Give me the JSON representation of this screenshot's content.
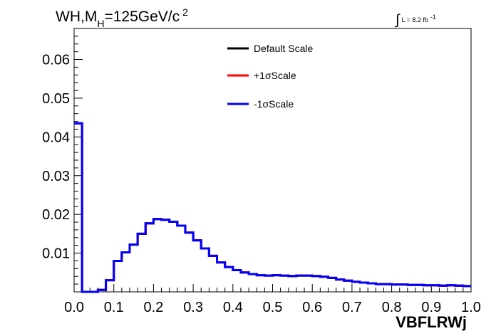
{
  "title": {
    "prefix": "WH,M",
    "subscript": "H",
    "suffix": "=125GeV/c",
    "superscript": "2"
  },
  "lumi": {
    "symbol": "∫",
    "text": "L = 8.2 fb",
    "superscript": "-1"
  },
  "colors": {
    "default": "#000000",
    "plus": "#ff0000",
    "minus": "#0000ff",
    "axis": "#000000"
  },
  "chart_data": {
    "type": "histogram",
    "xlabel": "VBFLRWj",
    "ylabel": "",
    "xlim": [
      0.0,
      1.0
    ],
    "ylim": [
      0.0,
      0.068
    ],
    "x_ticks": [
      "0.0",
      "0.1",
      "0.2",
      "0.3",
      "0.4",
      "0.5",
      "0.6",
      "0.7",
      "0.8",
      "0.9",
      "1.0"
    ],
    "y_ticks": [
      "0.01",
      "0.02",
      "0.03",
      "0.04",
      "0.05",
      "0.06"
    ],
    "y_tick_values": [
      0.01,
      0.02,
      0.03,
      0.04,
      0.05,
      0.06
    ],
    "bin_edges_start": 0.0,
    "bin_width": 0.02,
    "legend_position": "top-center",
    "series": [
      {
        "name": "Default Scale",
        "color": "#000000",
        "values": [
          0.0435,
          0.0,
          0.0,
          0.0005,
          0.003,
          0.008,
          0.0102,
          0.0122,
          0.015,
          0.0177,
          0.0188,
          0.0186,
          0.0181,
          0.0171,
          0.0153,
          0.0133,
          0.0112,
          0.0093,
          0.0076,
          0.0064,
          0.0056,
          0.005,
          0.0046,
          0.0043,
          0.0042,
          0.0043,
          0.0042,
          0.0041,
          0.0042,
          0.0042,
          0.0041,
          0.0039,
          0.0036,
          0.0032,
          0.0029,
          0.0026,
          0.0024,
          0.0022,
          0.002,
          0.002,
          0.0019,
          0.0019,
          0.0018,
          0.0018,
          0.0017,
          0.0017,
          0.0016,
          0.0017,
          0.0016,
          0.0015
        ]
      },
      {
        "name": "+1σScale",
        "color": "#ff0000",
        "values": [
          0.0435,
          0.0,
          0.0,
          0.0005,
          0.003,
          0.008,
          0.0102,
          0.0122,
          0.015,
          0.0177,
          0.0188,
          0.0186,
          0.0181,
          0.0171,
          0.0153,
          0.0133,
          0.0112,
          0.0093,
          0.0076,
          0.0064,
          0.0056,
          0.005,
          0.0046,
          0.0043,
          0.0042,
          0.0043,
          0.0042,
          0.0041,
          0.0042,
          0.0042,
          0.0041,
          0.0039,
          0.0036,
          0.0032,
          0.0029,
          0.0026,
          0.0024,
          0.0022,
          0.002,
          0.002,
          0.0019,
          0.0019,
          0.0018,
          0.0018,
          0.0017,
          0.0017,
          0.0016,
          0.0017,
          0.0016,
          0.0015
        ]
      },
      {
        "name": "-1σScale",
        "color": "#0000ff",
        "values": [
          0.0435,
          0.0,
          0.0,
          0.0005,
          0.003,
          0.008,
          0.0102,
          0.0122,
          0.015,
          0.0177,
          0.0188,
          0.0186,
          0.0181,
          0.0171,
          0.0153,
          0.0133,
          0.0112,
          0.0093,
          0.0076,
          0.0064,
          0.0056,
          0.005,
          0.0046,
          0.0043,
          0.0042,
          0.0043,
          0.0042,
          0.0041,
          0.0042,
          0.0042,
          0.0041,
          0.0039,
          0.0036,
          0.0032,
          0.0029,
          0.0026,
          0.0024,
          0.0022,
          0.002,
          0.002,
          0.0019,
          0.0019,
          0.0018,
          0.0018,
          0.0017,
          0.0017,
          0.0016,
          0.0017,
          0.0016,
          0.0015
        ]
      }
    ]
  }
}
